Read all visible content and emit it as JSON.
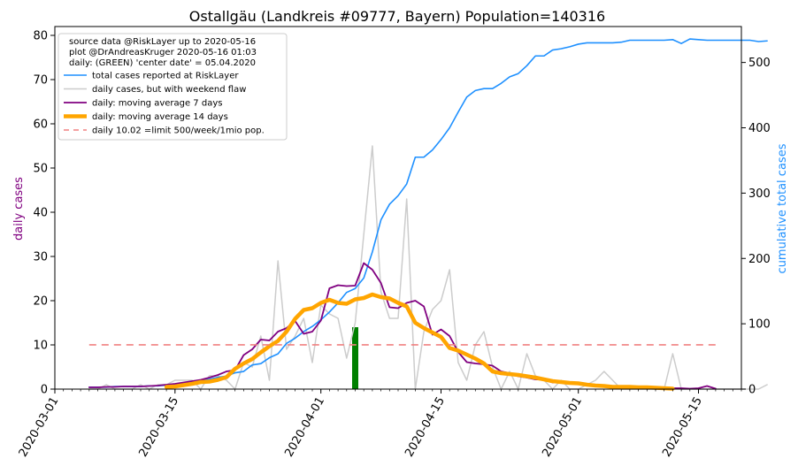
{
  "chart_data": {
    "type": "line",
    "title": "Ostallgäu (Landkreis #09777, Bayern) Population=140316",
    "ylabel_left": "daily cases",
    "ylabel_right": "cumulative total cases",
    "ylim_left": [
      0,
      82
    ],
    "ylim_right": [
      0,
      555
    ],
    "xlim": [
      "2020-03-01",
      "2020-05-20"
    ],
    "x_tick_labels": [
      "2020-03-01",
      "2020-03-15",
      "2020-04-01",
      "2020-04-15",
      "2020-05-01",
      "2020-05-15"
    ],
    "y_left_tick_labels": [
      "0",
      "10",
      "20",
      "30",
      "40",
      "50",
      "60",
      "70",
      "80"
    ],
    "y_right_tick_labels": [
      "0",
      "100",
      "200",
      "300",
      "400",
      "500"
    ],
    "grid": false,
    "legend_position": "top-left",
    "legend_header": [
      "source data @RiskLayer up to 2020-05-16",
      "plot @DrAndreasKruger 2020-05-16 01:03",
      "daily: (GREEN) 'center date' = 05.04.2020"
    ],
    "series": [
      {
        "name": "total cases reported at RiskLayer",
        "axis": "right",
        "color": "#1e90ff",
        "start": "2020-03-05",
        "values": [
          3,
          3,
          3,
          4,
          4,
          4,
          4,
          5,
          5,
          6,
          7,
          9,
          11,
          13,
          15,
          18,
          20,
          25,
          27,
          37,
          39,
          48,
          54,
          70,
          78,
          88,
          96,
          106,
          118,
          132,
          148,
          154,
          170,
          210,
          259,
          283,
          296,
          314,
          355,
          355,
          366,
          382,
          400,
          424,
          447,
          457,
          460,
          460,
          468,
          478,
          483,
          495,
          510,
          510,
          519,
          521,
          524,
          528,
          530,
          530,
          530,
          530,
          531,
          534,
          534,
          534,
          534,
          534,
          535,
          529,
          536,
          535,
          534,
          534,
          534,
          534,
          534,
          534,
          532,
          533
        ],
        "width": 1.6
      },
      {
        "name": "daily cases, but with weekend flaw",
        "axis": "left",
        "color": "#cccccc",
        "start": "2020-03-05",
        "values": [
          0,
          0,
          1,
          0,
          0,
          0,
          1,
          0,
          1,
          1,
          2,
          2,
          2,
          0,
          3,
          3,
          2,
          0,
          6,
          5,
          12,
          2,
          29,
          9,
          12,
          16,
          6,
          19,
          17,
          16,
          7,
          15,
          35,
          55,
          22,
          16,
          16,
          43,
          0,
          13,
          18,
          20,
          27,
          6,
          2,
          10,
          13,
          5,
          0,
          4,
          0,
          8,
          3,
          2,
          0,
          2,
          0,
          0,
          1,
          2,
          4,
          2,
          0,
          0,
          0,
          0,
          0,
          0,
          8,
          0,
          0,
          0,
          0,
          0,
          0,
          0,
          0,
          0,
          0,
          1
        ],
        "width": 1.5
      },
      {
        "name": "daily: moving average 7 days",
        "axis": "left",
        "color": "#800080",
        "start": "2020-03-05",
        "values": [
          0.4,
          0.4,
          0.5,
          0.5,
          0.6,
          0.6,
          0.6,
          0.7,
          0.8,
          1.0,
          1.2,
          1.5,
          1.8,
          2.1,
          2.6,
          3.2,
          4.0,
          4.3,
          7.7,
          9.0,
          11.2,
          11.0,
          13.0,
          13.8,
          15.4,
          12.5,
          13.0,
          15.5,
          22.8,
          23.5,
          23.3,
          23.4,
          28.5,
          27.0,
          24.0,
          18.5,
          18.3,
          19.5,
          20.0,
          18.7,
          12.3,
          13.5,
          12.0,
          8.4,
          6.1,
          5.8,
          5.6,
          5.3,
          4.0,
          3.6,
          2.9,
          2.6,
          2.2,
          2.1,
          1.5,
          1.5,
          1.3,
          1.1,
          0.9,
          0.7,
          0.6,
          0.5,
          0.4,
          0.4,
          0.3,
          0.3,
          0.3,
          0.2,
          0.2,
          0.2,
          0.1,
          0.2,
          0.7,
          0.1
        ],
        "width": 1.8
      },
      {
        "name": "daily: moving average 14 days",
        "axis": "left",
        "color": "#ffa500",
        "start": "2020-03-14",
        "values": [
          0.5,
          0.6,
          0.9,
          1.2,
          1.6,
          1.7,
          2.1,
          2.7,
          4.6,
          5.8,
          6.8,
          8.3,
          9.7,
          10.9,
          13.0,
          15.9,
          17.9,
          18.3,
          19.5,
          20.2,
          19.5,
          19.3,
          20.3,
          20.6,
          21.4,
          20.8,
          20.5,
          19.5,
          18.7,
          15.0,
          13.8,
          12.8,
          11.8,
          9.3,
          8.7,
          7.8,
          6.9,
          5.8,
          4.0,
          3.6,
          3.4,
          3.2,
          2.9,
          2.6,
          2.2,
          1.8,
          1.6,
          1.4,
          1.3,
          1.0,
          0.8,
          0.7,
          0.5,
          0.5,
          0.5,
          0.4,
          0.4,
          0.3,
          0.2,
          0.1
        ],
        "width": 4.5
      },
      {
        "name": "daily 10.02 =limit 500/week/1mio pop.",
        "axis": "left",
        "color": "#f08080",
        "dashed": true,
        "start": "2020-03-05",
        "end": "2020-05-17",
        "value": 10.02,
        "width": 1.6
      }
    ],
    "center_bar": {
      "date": "2020-04-05",
      "value": 14,
      "color": "#008000"
    }
  }
}
